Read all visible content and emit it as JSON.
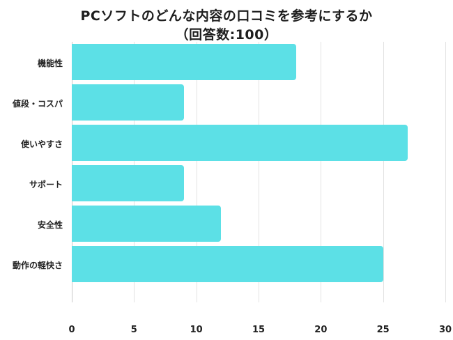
{
  "header": {
    "title_line1": "PCソフトのどんな内容の口コミを参考にするか",
    "title_line2": "（回答数:100）"
  },
  "colors": {
    "bar": "#5ce0e6",
    "grid": "#e2e2e2"
  },
  "chart_data": {
    "type": "bar",
    "orientation": "horizontal",
    "title": "PCソフトのどんな内容の口コミを参考にするか（回答数:100）",
    "categories": [
      "機能性",
      "値段・コスパ",
      "使いやすさ",
      "サポート",
      "安全性",
      "動作の軽快さ"
    ],
    "values": [
      18,
      9,
      27,
      9,
      12,
      25
    ],
    "xlabel": "",
    "ylabel": "",
    "xlim": [
      0,
      30
    ],
    "xticks": [
      "0",
      "5",
      "10",
      "15",
      "20",
      "25",
      "30"
    ],
    "grid": true,
    "legend": null
  }
}
